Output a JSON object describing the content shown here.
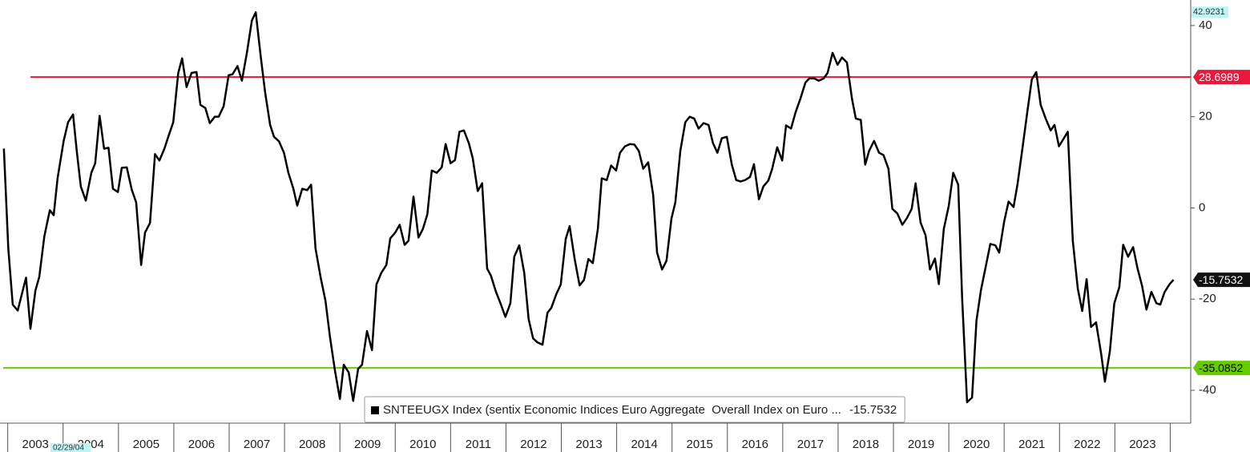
{
  "chart_data": {
    "type": "line",
    "x": [
      2002.93,
      2003.01,
      2003.09,
      2003.18,
      2003.33,
      2003.41,
      2003.5,
      2003.57,
      2003.66,
      2003.76,
      2003.83,
      2003.9,
      2004.01,
      2004.09,
      2004.18,
      2004.25,
      2004.32,
      2004.41,
      2004.51,
      2004.58,
      2004.66,
      2004.74,
      2004.82,
      2004.9,
      2004.99,
      2005.06,
      2005.15,
      2005.24,
      2005.32,
      2005.41,
      2005.48,
      2005.57,
      2005.66,
      2005.74,
      2005.83,
      2005.9,
      2005.99,
      2006.08,
      2006.15,
      2006.23,
      2006.32,
      2006.41,
      2006.48,
      2006.57,
      2006.65,
      2006.74,
      2006.81,
      2006.9,
      2006.99,
      2007.06,
      2007.15,
      2007.23,
      2007.32,
      2007.41,
      2007.48,
      2007.57,
      2007.65,
      2007.74,
      2007.81,
      2007.9,
      2007.99,
      2008.07,
      2008.16,
      2008.23,
      2008.32,
      2008.41,
      2008.48,
      2008.56,
      2008.65,
      2008.74,
      2008.82,
      2008.91,
      2009.0,
      2009.07,
      2009.16,
      2009.24,
      2009.33,
      2009.4,
      2009.49,
      2009.58,
      2009.66,
      2009.75,
      2009.84,
      2009.91,
      2010.0,
      2010.08,
      2010.17,
      2010.24,
      2010.33,
      2010.42,
      2010.5,
      2010.58,
      2010.66,
      2010.75,
      2010.84,
      2010.91,
      2011.0,
      2011.08,
      2011.16,
      2011.24,
      2011.33,
      2011.4,
      2011.49,
      2011.57,
      2011.66,
      2011.73,
      2011.82,
      2011.91,
      2011.99,
      2012.08,
      2012.15,
      2012.24,
      2012.33,
      2012.41,
      2012.49,
      2012.57,
      2012.66,
      2012.75,
      2012.82,
      2012.91,
      2012.99,
      2013.08,
      2013.15,
      2013.24,
      2013.33,
      2013.41,
      2013.49,
      2013.57,
      2013.66,
      2013.73,
      2013.82,
      2013.9,
      2013.99,
      2014.06,
      2014.15,
      2014.24,
      2014.32,
      2014.4,
      2014.48,
      2014.57,
      2014.66,
      2014.73,
      2014.82,
      2014.9,
      2014.99,
      2015.06,
      2015.15,
      2015.24,
      2015.32,
      2015.4,
      2015.48,
      2015.57,
      2015.66,
      2015.74,
      2015.82,
      2015.9,
      2015.99,
      2016.08,
      2016.16,
      2016.24,
      2016.32,
      2016.41,
      2016.48,
      2016.57,
      2016.65,
      2016.74,
      2016.81,
      2016.9,
      2016.99,
      2017.06,
      2017.15,
      2017.23,
      2017.32,
      2017.41,
      2017.48,
      2017.57,
      2017.65,
      2017.74,
      2017.81,
      2017.9,
      2017.99,
      2018.07,
      2018.16,
      2018.25,
      2018.32,
      2018.41,
      2018.49,
      2018.56,
      2018.65,
      2018.74,
      2018.82,
      2018.91,
      2018.98,
      2019.07,
      2019.16,
      2019.24,
      2019.33,
      2019.4,
      2019.49,
      2019.58,
      2019.66,
      2019.75,
      2019.82,
      2019.91,
      2020.0,
      2020.08,
      2020.17,
      2020.24,
      2020.33,
      2020.42,
      2020.5,
      2020.58,
      2020.66,
      2020.75,
      2020.84,
      2020.91,
      2021.0,
      2021.08,
      2021.17,
      2021.24,
      2021.33,
      2021.42,
      2021.5,
      2021.58,
      2021.66,
      2021.75,
      2021.84,
      2021.91,
      2021.99,
      2022.08,
      2022.15,
      2022.24,
      2022.33,
      2022.41,
      2022.49,
      2022.57,
      2022.66,
      2022.75,
      2022.82,
      2022.91,
      2022.99,
      2023.08,
      2023.15,
      2023.24,
      2023.33,
      2023.41,
      2023.49,
      2023.57,
      2023.66,
      2023.75,
      2023.82,
      2023.9,
      2023.99,
      2024.06
    ],
    "series": [
      {
        "name": "SNTEEUGX Index (sentix Economic Indices Euro Aggregate  Overall Index on Euro ...",
        "color": "#000000",
        "values": [
          13.0,
          -8.9,
          -21.2,
          -22.5,
          -15.3,
          -26.5,
          -18.1,
          -15.1,
          -6.3,
          -0.5,
          -1.6,
          6.5,
          14.7,
          18.8,
          20.5,
          12.1,
          4.7,
          1.6,
          7.7,
          9.8,
          20.2,
          13.0,
          13.2,
          4.2,
          3.5,
          8.8,
          8.9,
          4.0,
          1.2,
          -12.5,
          -5.4,
          -3.3,
          11.8,
          10.4,
          13.0,
          15.6,
          18.8,
          29.6,
          32.8,
          26.5,
          29.6,
          29.8,
          22.6,
          21.9,
          18.6,
          20.0,
          20.0,
          22.3,
          29.1,
          29.3,
          31.1,
          27.9,
          34.0,
          41.1,
          42.9,
          33.2,
          25.3,
          18.2,
          15.6,
          14.6,
          12.1,
          7.7,
          4.2,
          0.5,
          4.2,
          3.9,
          5.1,
          -8.9,
          -15.1,
          -20.4,
          -28.2,
          -35.6,
          -41.9,
          -34.4,
          -36.1,
          -42.3,
          -35.3,
          -34.4,
          -27.0,
          -31.2,
          -16.8,
          -14.2,
          -12.5,
          -6.7,
          -5.4,
          -3.7,
          -8.1,
          -7.2,
          2.5,
          -6.5,
          -4.6,
          -1.4,
          8.2,
          7.7,
          8.9,
          14.0,
          9.8,
          10.5,
          16.7,
          17.0,
          14.2,
          10.9,
          3.7,
          5.4,
          -13.3,
          -14.9,
          -18.4,
          -21.2,
          -23.9,
          -20.9,
          -10.7,
          -8.2,
          -14.2,
          -24.4,
          -28.6,
          -29.5,
          -30.0,
          -23.0,
          -21.9,
          -18.9,
          -16.8,
          -6.8,
          -4.0,
          -11.1,
          -17.0,
          -15.8,
          -11.2,
          -12.1,
          -4.6,
          6.5,
          6.1,
          9.3,
          8.2,
          12.1,
          13.5,
          14.0,
          13.9,
          12.5,
          8.6,
          10.0,
          2.8,
          -9.8,
          -13.5,
          -11.6,
          -2.3,
          1.2,
          12.5,
          18.8,
          20.0,
          19.6,
          17.4,
          18.6,
          18.2,
          14.2,
          12.1,
          15.3,
          15.6,
          9.5,
          6.1,
          5.8,
          6.1,
          6.8,
          9.6,
          1.9,
          4.7,
          6.0,
          8.6,
          13.3,
          10.4,
          18.1,
          17.4,
          20.9,
          24.0,
          27.5,
          28.4,
          28.4,
          27.9,
          28.4,
          29.6,
          34.0,
          31.4,
          33.0,
          31.9,
          24.0,
          19.6,
          19.3,
          9.5,
          12.5,
          14.7,
          12.1,
          11.6,
          8.6,
          -0.2,
          -1.2,
          -3.7,
          -2.3,
          -0.2,
          5.4,
          -3.2,
          -6.0,
          -13.5,
          -11.1,
          -16.7,
          -4.6,
          0.5,
          7.7,
          5.1,
          -19.5,
          -42.6,
          -41.6,
          -24.7,
          -18.1,
          -13.3,
          -7.9,
          -8.2,
          -9.8,
          -3.0,
          1.4,
          0.2,
          5.1,
          13.0,
          21.2,
          28.2,
          29.8,
          22.6,
          19.6,
          17.0,
          18.2,
          13.5,
          15.3,
          16.7,
          -7.2,
          -17.7,
          -22.6,
          -15.6,
          -26.1,
          -25.1,
          -31.8,
          -38.1,
          -31.4,
          -20.9,
          -17.4,
          -8.1,
          -10.7,
          -8.6,
          -13.3,
          -17.0,
          -22.3,
          -18.4,
          -20.9,
          -21.2,
          -18.4,
          -16.7,
          -15.7532
        ]
      }
    ],
    "last_value": -15.7532,
    "max_value": 42.9231,
    "hlines": [
      {
        "value": 28.6989,
        "color": "#e8173c"
      },
      {
        "value": -35.0852,
        "color": "#66cc00"
      }
    ],
    "cursor_label": "02/29/04",
    "xlim": [
      2002.86,
      2024.37
    ],
    "ylim": [
      -47.2,
      45.6
    ],
    "yticks": [
      -40,
      -20,
      0,
      20,
      40
    ],
    "xticks": [
      {
        "value": 2003,
        "label": "2003"
      },
      {
        "value": 2004,
        "label": "2004"
      },
      {
        "value": 2005,
        "label": "2005"
      },
      {
        "value": 2006,
        "label": "2006"
      },
      {
        "value": 2007,
        "label": "2007"
      },
      {
        "value": 2008,
        "label": "2008"
      },
      {
        "value": 2009,
        "label": "2009"
      },
      {
        "value": 2010,
        "label": "2010"
      },
      {
        "value": 2011,
        "label": "2011"
      },
      {
        "value": 2012,
        "label": "2012"
      },
      {
        "value": 2013,
        "label": "2013"
      },
      {
        "value": 2014,
        "label": "2014"
      },
      {
        "value": 2015,
        "label": "2015"
      },
      {
        "value": 2016,
        "label": "2016"
      },
      {
        "value": 2017,
        "label": "2017"
      },
      {
        "value": 2018,
        "label": "2018"
      },
      {
        "value": 2019,
        "label": "2019"
      },
      {
        "value": 2020,
        "label": "2020"
      },
      {
        "value": 2021,
        "label": "2021"
      },
      {
        "value": 2022,
        "label": "2022"
      },
      {
        "value": 2023,
        "label": "2023"
      }
    ]
  }
}
